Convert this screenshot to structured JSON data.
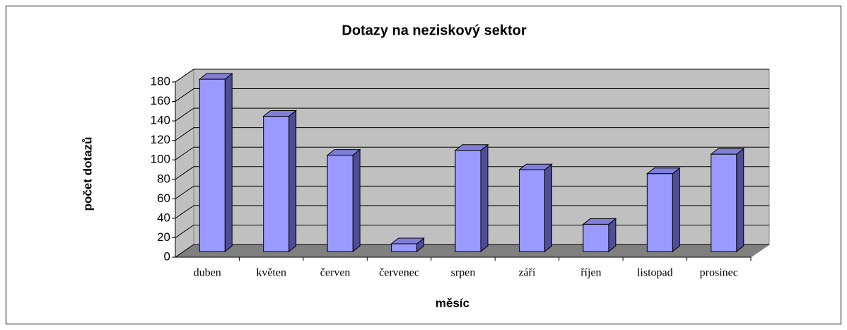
{
  "chart_data": {
    "type": "bar3d",
    "title": "Dotazy na neziskový sektor",
    "x_label": "měsíc",
    "y_label": "počet dotazů",
    "categories": [
      "duben",
      "květen",
      "červen",
      "červenec",
      "srpen",
      "září",
      "říjen",
      "listopad",
      "prosinec"
    ],
    "values": [
      177,
      139,
      99,
      8,
      104,
      84,
      28,
      80,
      100
    ],
    "color": "#9999ff",
    "ylim": [
      0,
      180
    ],
    "yticks": [
      0,
      20,
      40,
      60,
      80,
      100,
      120,
      140,
      160,
      180
    ],
    "grid": true
  }
}
